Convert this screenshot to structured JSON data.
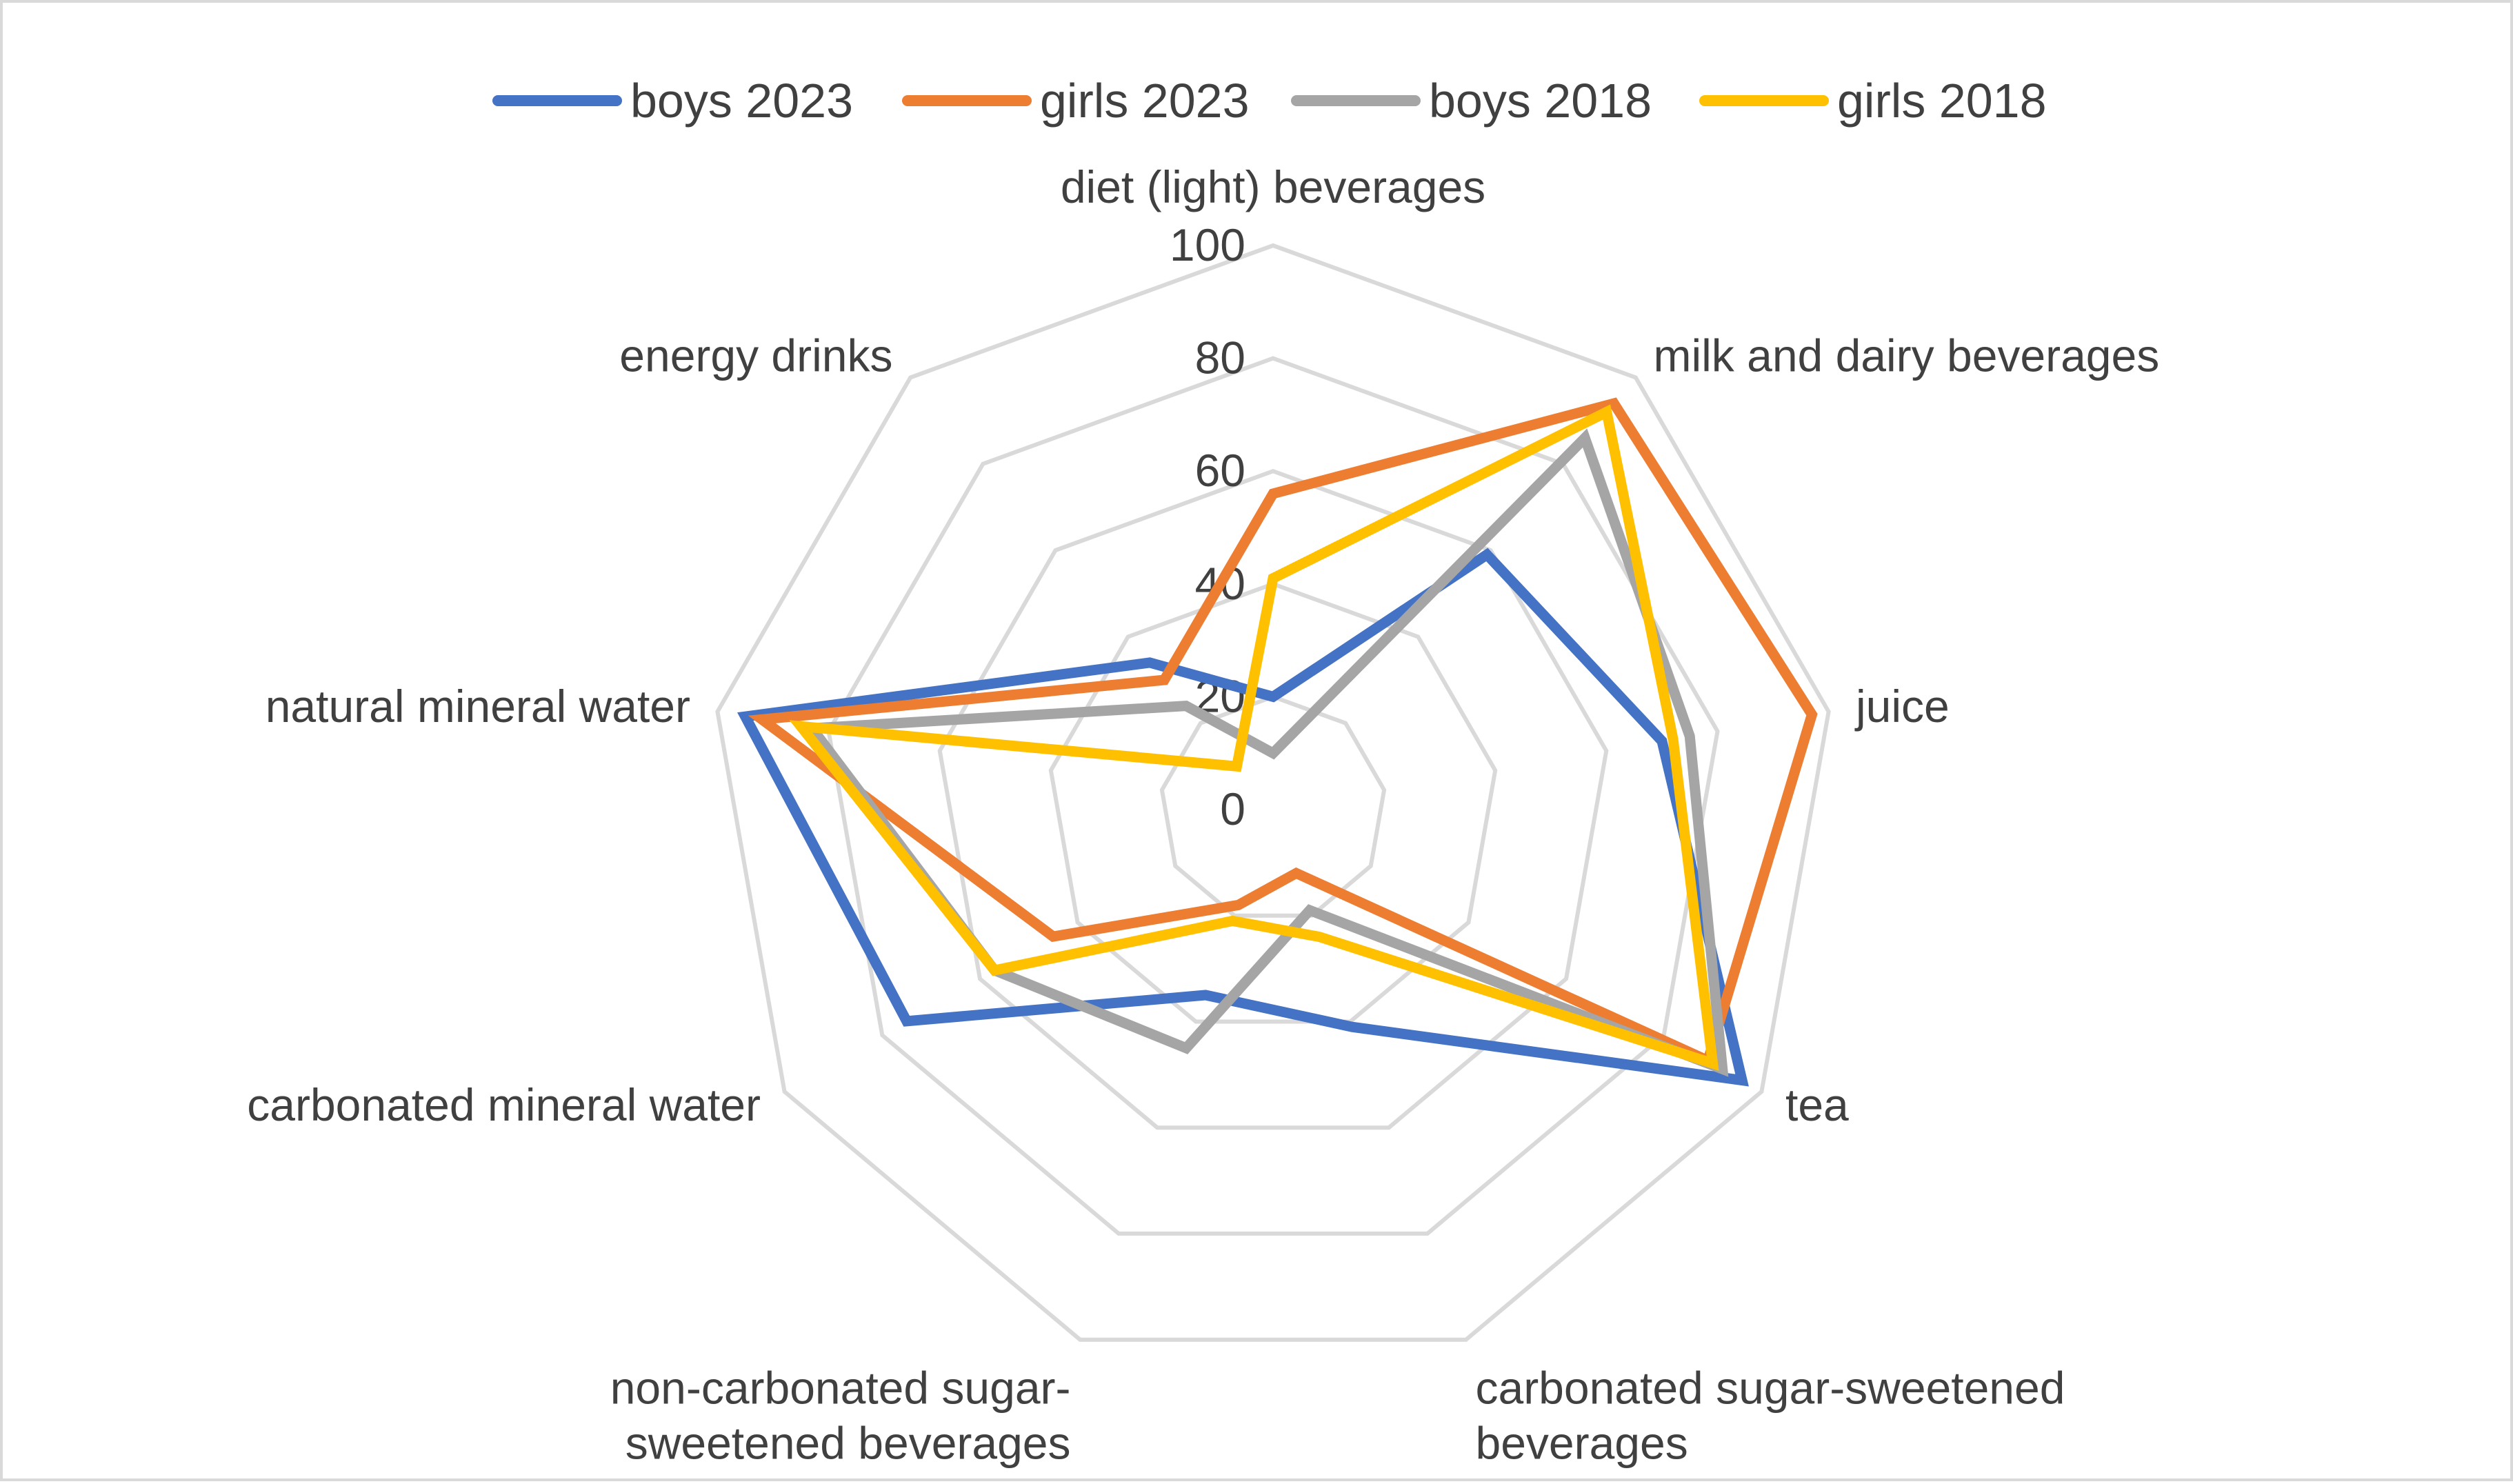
{
  "chart_data": {
    "type": "radar",
    "title": "",
    "categories": [
      [
        "diet (light) beverages"
      ],
      [
        "milk and dairy beverages"
      ],
      [
        "juice"
      ],
      [
        "tea"
      ],
      [
        "carbonated sugar-sweetened",
        "beverages"
      ],
      [
        "non-carbonated sugar-",
        "sweetened beverages"
      ],
      [
        "carbonated mineral water"
      ],
      [
        "natural mineral water"
      ],
      [
        "energy drinks"
      ]
    ],
    "rlim": [
      0,
      100
    ],
    "ticks": [
      "0",
      "20",
      "40",
      "60",
      "80",
      "100"
    ],
    "tick_values": [
      0,
      20,
      40,
      60,
      80,
      100
    ],
    "legend_position": "top",
    "series": [
      {
        "name": "boys 2023",
        "color": "#4472c4",
        "values": [
          20,
          59,
          70,
          96,
          41,
          35,
          75,
          95,
          34
        ]
      },
      {
        "name": "girls 2023",
        "color": "#ed7d31",
        "values": [
          56,
          94,
          97,
          89,
          12,
          18,
          45,
          92,
          30
        ]
      },
      {
        "name": "boys 2018",
        "color": "#a5a5a5",
        "values": [
          10,
          86,
          75,
          92,
          19,
          45,
          57,
          83,
          24
        ]
      },
      {
        "name": "girls 2018",
        "color": "#ffc000",
        "values": [
          41,
          92,
          72,
          90,
          24,
          21,
          57,
          85,
          10
        ]
      }
    ]
  }
}
